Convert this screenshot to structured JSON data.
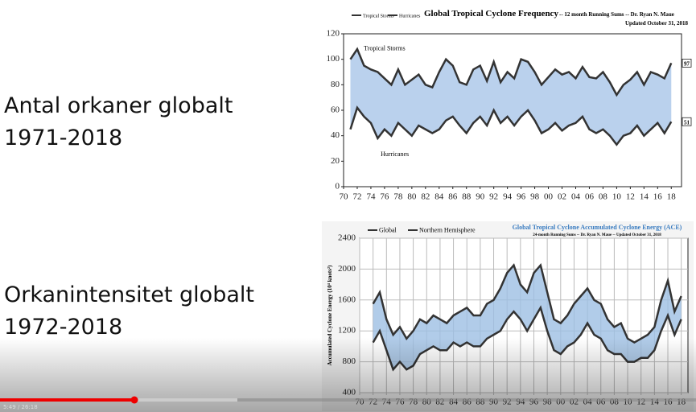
{
  "slide": {
    "lines": [
      "Antal orkaner globalt",
      "1971-2018",
      "Orkanintensitet globalt",
      "1972-2018"
    ]
  },
  "player": {
    "time": "5:49 / 26:18"
  },
  "chart_data": [
    {
      "type": "line",
      "title": "Global Tropical Cyclone Frequency",
      "subtitle": "-- 12 month Running Sums -- Dr. Ryan N. Maue",
      "note": "Updated October 31, 2018",
      "x": [
        1971,
        1972,
        1973,
        1974,
        1975,
        1976,
        1977,
        1978,
        1979,
        1980,
        1981,
        1982,
        1983,
        1984,
        1985,
        1986,
        1987,
        1988,
        1989,
        1990,
        1991,
        1992,
        1993,
        1994,
        1995,
        1996,
        1997,
        1998,
        1999,
        2000,
        2001,
        2002,
        2003,
        2004,
        2005,
        2006,
        2007,
        2008,
        2009,
        2010,
        2011,
        2012,
        2013,
        2014,
        2015,
        2016,
        2017,
        2018
      ],
      "series": [
        {
          "name": "Tropical Storms",
          "color": "#333333",
          "values": [
            100,
            108,
            95,
            92,
            90,
            85,
            80,
            92,
            80,
            84,
            88,
            80,
            78,
            90,
            100,
            95,
            82,
            80,
            92,
            95,
            83,
            98,
            82,
            90,
            85,
            100,
            98,
            90,
            80,
            86,
            92,
            88,
            90,
            85,
            94,
            86,
            85,
            90,
            82,
            72,
            80,
            84,
            90,
            80,
            90,
            88,
            85,
            97
          ]
        },
        {
          "name": "Hurricanes",
          "color": "#333333",
          "values": [
            45,
            62,
            55,
            50,
            38,
            45,
            40,
            50,
            45,
            40,
            48,
            45,
            42,
            45,
            52,
            55,
            48,
            42,
            50,
            55,
            48,
            60,
            50,
            55,
            48,
            55,
            60,
            52,
            42,
            45,
            50,
            44,
            48,
            50,
            55,
            45,
            42,
            45,
            40,
            33,
            40,
            42,
            48,
            40,
            45,
            50,
            42,
            51
          ]
        }
      ],
      "end_labels": [
        97,
        51
      ],
      "xlim": [
        1970,
        2019.5
      ],
      "ylim": [
        0,
        120
      ],
      "yticks": [
        0,
        20,
        40,
        60,
        80,
        100,
        120
      ],
      "xticks": [
        {
          "value": 1970,
          "label": "70"
        },
        {
          "value": 1972,
          "label": "72"
        },
        {
          "value": 1974,
          "label": "74"
        },
        {
          "value": 1976,
          "label": "76"
        },
        {
          "value": 1978,
          "label": "78"
        },
        {
          "value": 1980,
          "label": "80"
        },
        {
          "value": 1982,
          "label": "82"
        },
        {
          "value": 1984,
          "label": "84"
        },
        {
          "value": 1986,
          "label": "86"
        },
        {
          "value": 1988,
          "label": "88"
        },
        {
          "value": 1990,
          "label": "90"
        },
        {
          "value": 1992,
          "label": "92"
        },
        {
          "value": 1994,
          "label": "94"
        },
        {
          "value": 1996,
          "label": "96"
        },
        {
          "value": 1998,
          "label": "98"
        },
        {
          "value": 2000,
          "label": "00"
        },
        {
          "value": 2002,
          "label": "02"
        },
        {
          "value": 2004,
          "label": "04"
        },
        {
          "value": 2006,
          "label": "06"
        },
        {
          "value": 2008,
          "label": "08"
        },
        {
          "value": 2010,
          "label": "10"
        },
        {
          "value": 2012,
          "label": "12"
        },
        {
          "value": 2014,
          "label": "14"
        },
        {
          "value": 2016,
          "label": "16"
        },
        {
          "value": 2018,
          "label": "18"
        }
      ],
      "grid": false,
      "fill": "#a9c6e8"
    },
    {
      "type": "line",
      "title": "Global Tropical Cyclone Accumulated Cyclone Energy (ACE)",
      "subtitle": "24-month Running Sums -- Dr. Ryan N. Maue -- Updated October 31, 2018",
      "ylabel": "Accumulated Cyclone Energy (10⁴ knots²)",
      "x": [
        1972,
        1973,
        1974,
        1975,
        1976,
        1977,
        1978,
        1979,
        1980,
        1981,
        1982,
        1983,
        1984,
        1985,
        1986,
        1987,
        1988,
        1989,
        1990,
        1991,
        1992,
        1993,
        1994,
        1995,
        1996,
        1997,
        1998,
        1999,
        2000,
        2001,
        2002,
        2003,
        2004,
        2005,
        2006,
        2007,
        2008,
        2009,
        2010,
        2011,
        2012,
        2013,
        2014,
        2015,
        2016,
        2017,
        2018
      ],
      "series": [
        {
          "name": "Global",
          "color": "#333333",
          "values": [
            1550,
            1700,
            1350,
            1150,
            1250,
            1100,
            1200,
            1350,
            1300,
            1400,
            1350,
            1300,
            1400,
            1450,
            1500,
            1400,
            1400,
            1550,
            1600,
            1750,
            1950,
            2050,
            1800,
            1700,
            1950,
            2050,
            1700,
            1350,
            1300,
            1400,
            1550,
            1650,
            1750,
            1600,
            1550,
            1350,
            1250,
            1300,
            1100,
            1050,
            1100,
            1150,
            1250,
            1600,
            1850,
            1450,
            1650
          ]
        },
        {
          "name": "Northern Hemisphere",
          "color": "#333333",
          "values": [
            1050,
            1200,
            950,
            700,
            800,
            700,
            750,
            900,
            950,
            1000,
            950,
            950,
            1050,
            1000,
            1050,
            1000,
            1000,
            1100,
            1150,
            1200,
            1350,
            1450,
            1350,
            1200,
            1350,
            1500,
            1200,
            950,
            900,
            1000,
            1050,
            1150,
            1300,
            1150,
            1100,
            950,
            900,
            900,
            800,
            800,
            850,
            850,
            950,
            1200,
            1400,
            1150,
            1350
          ]
        }
      ],
      "xlim": [
        1970,
        2019
      ],
      "ylim": [
        400,
        2400
      ],
      "yticks": [
        400,
        800,
        1200,
        1600,
        2000,
        2400
      ],
      "xticks": [
        {
          "value": 1970,
          "label": "70"
        },
        {
          "value": 1972,
          "label": "72"
        },
        {
          "value": 1974,
          "label": "74"
        },
        {
          "value": 1976,
          "label": "76"
        },
        {
          "value": 1978,
          "label": "78"
        },
        {
          "value": 1980,
          "label": "80"
        },
        {
          "value": 1982,
          "label": "82"
        },
        {
          "value": 1984,
          "label": "84"
        },
        {
          "value": 1986,
          "label": "86"
        },
        {
          "value": 1988,
          "label": "88"
        },
        {
          "value": 1990,
          "label": "90"
        },
        {
          "value": 1992,
          "label": "92"
        },
        {
          "value": 1994,
          "label": "94"
        },
        {
          "value": 1996,
          "label": "96"
        },
        {
          "value": 1998,
          "label": "98"
        },
        {
          "value": 2000,
          "label": "00"
        },
        {
          "value": 2002,
          "label": "02"
        },
        {
          "value": 2004,
          "label": "04"
        },
        {
          "value": 2006,
          "label": "06"
        },
        {
          "value": 2008,
          "label": "08"
        },
        {
          "value": 2010,
          "label": "10"
        },
        {
          "value": 2012,
          "label": "12"
        },
        {
          "value": 2014,
          "label": "14"
        },
        {
          "value": 2016,
          "label": "16"
        },
        {
          "value": 2018,
          "label": "18"
        }
      ],
      "grid": true,
      "fill": "#9dbfe3"
    }
  ]
}
